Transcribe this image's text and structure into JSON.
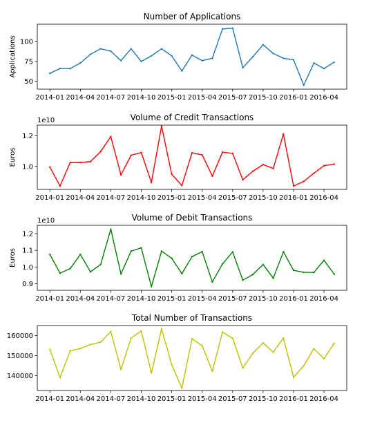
{
  "chart_data": [
    {
      "type": "line",
      "title": "Number of Applications",
      "ylabel": "Applications",
      "offset_label": "",
      "color": "#1f77b4",
      "x": [
        "2014-01",
        "2014-02",
        "2014-03",
        "2014-04",
        "2014-05",
        "2014-06",
        "2014-07",
        "2014-08",
        "2014-09",
        "2014-10",
        "2014-11",
        "2014-12",
        "2015-01",
        "2015-02",
        "2015-03",
        "2015-04",
        "2015-05",
        "2015-06",
        "2015-07",
        "2015-08",
        "2015-09",
        "2015-10",
        "2015-11",
        "2015-12",
        "2016-01",
        "2016-02",
        "2016-03",
        "2016-04",
        "2016-05"
      ],
      "values": [
        60,
        66,
        66,
        73,
        84,
        91,
        88,
        76,
        91,
        75,
        82,
        91,
        82,
        63,
        83,
        76,
        79,
        116,
        117,
        67,
        81,
        96,
        85,
        79,
        77,
        45,
        73,
        66,
        74
      ],
      "ylim": [
        40,
        122
      ],
      "yticks": [
        50,
        75,
        100
      ],
      "ytick_labels": [
        "50",
        "75",
        "100"
      ],
      "xtick_labels": [
        "2014-01",
        "2014-04",
        "2014-07",
        "2014-10",
        "2015-01",
        "2015-04",
        "2015-07",
        "2015-10",
        "2016-01",
        "2016-04"
      ]
    },
    {
      "type": "line",
      "title": "Volume of Credit Transactions",
      "ylabel": "Euros",
      "offset_label": "1e10",
      "color": "#ff0000",
      "x": [
        "2014-01",
        "2014-02",
        "2014-03",
        "2014-04",
        "2014-05",
        "2014-06",
        "2014-07",
        "2014-08",
        "2014-09",
        "2014-10",
        "2014-11",
        "2014-12",
        "2015-01",
        "2015-02",
        "2015-03",
        "2015-04",
        "2015-05",
        "2015-06",
        "2015-07",
        "2015-08",
        "2015-09",
        "2015-10",
        "2015-11",
        "2015-12",
        "2016-01",
        "2016-02",
        "2016-03",
        "2016-04",
        "2016-05"
      ],
      "values": [
        0.996,
        0.872,
        1.025,
        1.025,
        1.032,
        1.097,
        1.195,
        0.945,
        1.073,
        1.091,
        0.895,
        1.263,
        0.949,
        0.875,
        1.089,
        1.075,
        0.937,
        1.093,
        1.085,
        0.913,
        0.969,
        1.012,
        0.987,
        1.212,
        0.872,
        0.902,
        0.956,
        1.005,
        1.015
      ],
      "ylim": [
        0.85,
        1.27
      ],
      "yticks": [
        1.0,
        1.2
      ],
      "ytick_labels": [
        "1.0",
        "1.2"
      ],
      "xtick_labels": [
        "2014-01",
        "2014-04",
        "2014-07",
        "2014-10",
        "2015-01",
        "2015-04",
        "2015-07",
        "2015-10",
        "2016-01",
        "2016-04"
      ]
    },
    {
      "type": "line",
      "title": "Volume of Debit Transactions",
      "ylabel": "Euros",
      "offset_label": "1e10",
      "color": "#008000",
      "x": [
        "2014-01",
        "2014-02",
        "2014-03",
        "2014-04",
        "2014-05",
        "2014-06",
        "2014-07",
        "2014-08",
        "2014-09",
        "2014-10",
        "2014-11",
        "2014-12",
        "2015-01",
        "2015-02",
        "2015-03",
        "2015-04",
        "2015-05",
        "2015-06",
        "2015-07",
        "2015-08",
        "2015-09",
        "2015-10",
        "2015-11",
        "2015-12",
        "2016-01",
        "2016-02",
        "2016-03",
        "2016-04",
        "2016-05"
      ],
      "values": [
        1.075,
        0.963,
        0.99,
        1.075,
        0.971,
        1.015,
        1.227,
        0.958,
        1.095,
        1.115,
        0.882,
        1.095,
        1.052,
        0.96,
        1.062,
        1.092,
        0.91,
        1.018,
        1.09,
        0.921,
        0.955,
        1.015,
        0.933,
        1.091,
        0.98,
        0.968,
        0.967,
        1.04,
        0.957
      ],
      "ylim": [
        0.86,
        1.25
      ],
      "yticks": [
        0.9,
        1.0,
        1.1,
        1.2
      ],
      "ytick_labels": [
        "0.9",
        "1.0",
        "1.1",
        "1.2"
      ],
      "xtick_labels": [
        "2014-01",
        "2014-04",
        "2014-07",
        "2014-10",
        "2015-01",
        "2015-04",
        "2015-07",
        "2015-10",
        "2016-01",
        "2016-04"
      ]
    },
    {
      "type": "line",
      "title": "Total Number of Transactions",
      "ylabel": "",
      "offset_label": "",
      "color": "#bfbf00",
      "x": [
        "2014-01",
        "2014-02",
        "2014-03",
        "2014-04",
        "2014-05",
        "2014-06",
        "2014-07",
        "2014-08",
        "2014-09",
        "2014-10",
        "2014-11",
        "2014-12",
        "2015-01",
        "2015-02",
        "2015-03",
        "2015-04",
        "2015-05",
        "2015-06",
        "2015-07",
        "2015-08",
        "2015-09",
        "2015-10",
        "2015-11",
        "2015-12",
        "2016-01",
        "2016-02",
        "2016-03",
        "2016-04",
        "2016-05"
      ],
      "values": [
        153000,
        139000,
        152300,
        153500,
        155500,
        156700,
        162000,
        143100,
        158700,
        162300,
        141300,
        163300,
        145400,
        133600,
        158400,
        154900,
        142100,
        161700,
        158600,
        143800,
        151200,
        156300,
        151700,
        158700,
        139100,
        144900,
        153400,
        148400,
        156100
      ],
      "ylim": [
        132500,
        165000
      ],
      "yticks": [
        140000,
        150000,
        160000
      ],
      "ytick_labels": [
        "140000",
        "150000",
        "160000"
      ],
      "xtick_labels": [
        "2014-01",
        "2014-04",
        "2014-07",
        "2014-10",
        "2015-01",
        "2015-04",
        "2015-07",
        "2015-10",
        "2016-01",
        "2016-04"
      ]
    }
  ]
}
